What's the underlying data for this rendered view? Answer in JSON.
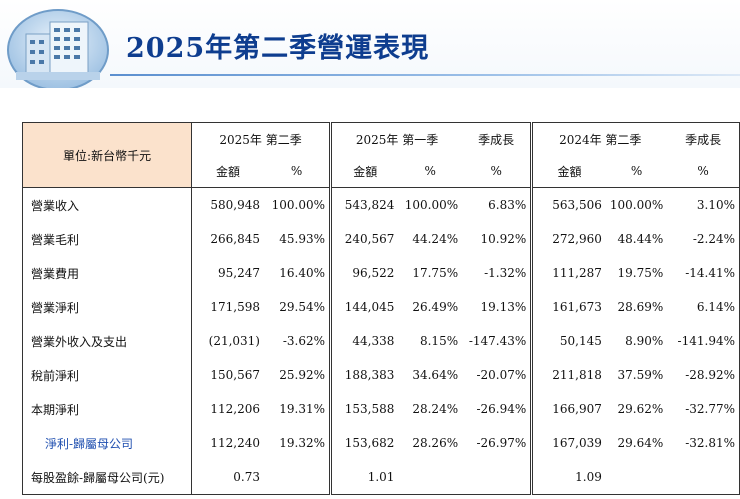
{
  "page": {
    "title": "2025年第二季營運表現"
  },
  "table": {
    "unit_label": "單位:新台幣千元",
    "groups": [
      {
        "label": "2025年 第二季"
      },
      {
        "label": "2025年 第一季",
        "extra": "季成長"
      },
      {
        "label": "2024年 第二季",
        "extra": "季成長"
      }
    ],
    "sub_headers": [
      "金額",
      "%",
      "金額",
      "%",
      "%",
      "金額",
      "%",
      "%"
    ],
    "rows": [
      {
        "label": "營業收入",
        "v": [
          "580,948",
          "100.00%",
          "543,824",
          "100.00%",
          "6.83%",
          "563,506",
          "100.00%",
          "3.10%"
        ]
      },
      {
        "label": "營業毛利",
        "v": [
          "266,845",
          "45.93%",
          "240,567",
          "44.24%",
          "10.92%",
          "272,960",
          "48.44%",
          "-2.24%"
        ]
      },
      {
        "label": "營業費用",
        "v": [
          "95,247",
          "16.40%",
          "96,522",
          "17.75%",
          "-1.32%",
          "111,287",
          "19.75%",
          "-14.41%"
        ]
      },
      {
        "label": "營業淨利",
        "v": [
          "171,598",
          "29.54%",
          "144,045",
          "26.49%",
          "19.13%",
          "161,673",
          "28.69%",
          "6.14%"
        ]
      },
      {
        "label": "營業外收入及支出",
        "v": [
          "(21,031)",
          "-3.62%",
          "44,338",
          "8.15%",
          "-147.43%",
          "50,145",
          "8.90%",
          "-141.94%"
        ]
      },
      {
        "label": "稅前淨利",
        "v": [
          "150,567",
          "25.92%",
          "188,383",
          "34.64%",
          "-20.07%",
          "211,818",
          "37.59%",
          "-28.92%"
        ]
      },
      {
        "label": "本期淨利",
        "v": [
          "112,206",
          "19.31%",
          "153,588",
          "28.24%",
          "-26.94%",
          "166,907",
          "29.62%",
          "-32.77%"
        ]
      },
      {
        "label": "淨利-歸屬母公司",
        "v": [
          "112,240",
          "19.32%",
          "153,682",
          "28.26%",
          "-26.97%",
          "167,039",
          "29.64%",
          "-32.81%"
        ]
      },
      {
        "label": "每股盈餘-歸屬母公司(元)",
        "v": [
          "0.73",
          "",
          "1.01",
          "",
          "",
          "1.09",
          "",
          ""
        ]
      }
    ]
  }
}
